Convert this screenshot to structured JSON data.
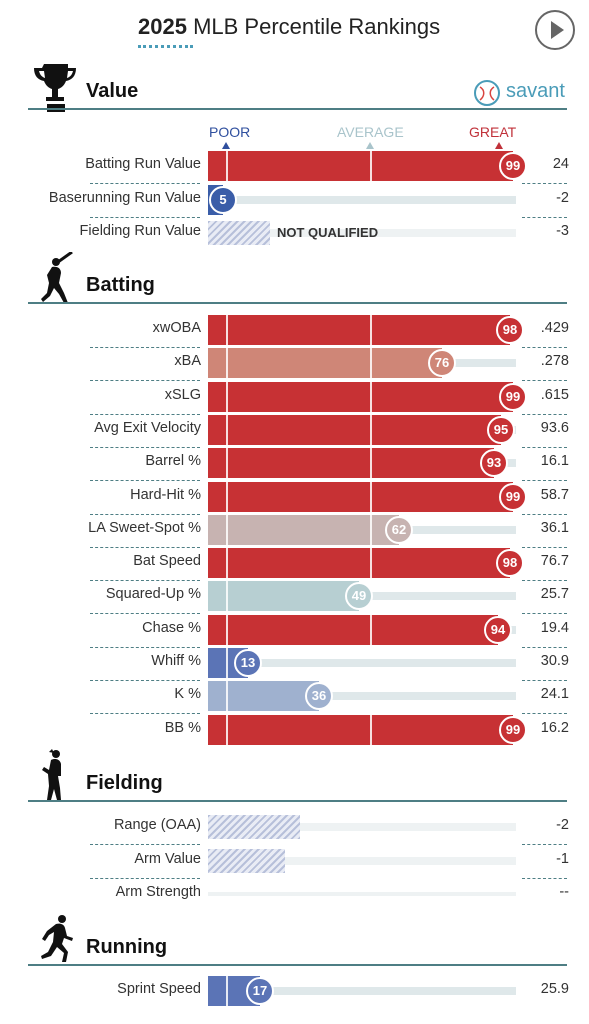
{
  "header": {
    "title_year": "2025",
    "title_rest": " MLB Percentile Rankings",
    "play_label": "play-icon"
  },
  "brand": {
    "savant_label": "savant",
    "accent": "#4a9cb8"
  },
  "scale": {
    "poor": "POOR",
    "average": "AVERAGE",
    "great": "GREAT",
    "poor_color": "#2f4f9e",
    "average_color": "#a9c4cb",
    "great_color": "#c0313a"
  },
  "sections": {
    "value": "Value",
    "batting": "Batting",
    "fielding": "Fielding",
    "running": "Running"
  },
  "rows": {
    "value": [
      {
        "label": "Batting Run Value",
        "percentile": 99,
        "value": "24",
        "color": "#c73134"
      },
      {
        "label": "Baserunning Run Value",
        "percentile": 5,
        "value": "-2",
        "color": "#3a5da8"
      },
      {
        "label": "Fielding Run Value",
        "percentile": null,
        "value": "-3",
        "status": "NOT QUALIFIED"
      }
    ],
    "batting": [
      {
        "label": "xwOBA",
        "percentile": 98,
        "value": ".429",
        "color": "#c73134"
      },
      {
        "label": "xBA",
        "percentile": 76,
        "value": ".278",
        "color": "#cf8677"
      },
      {
        "label": "xSLG",
        "percentile": 99,
        "value": ".615",
        "color": "#c73134"
      },
      {
        "label": "Avg Exit Velocity",
        "percentile": 95,
        "value": "93.6",
        "color": "#c73134"
      },
      {
        "label": "Barrel %",
        "percentile": 93,
        "value": "16.1",
        "color": "#c73134"
      },
      {
        "label": "Hard-Hit %",
        "percentile": 99,
        "value": "58.7",
        "color": "#c73134"
      },
      {
        "label": "LA Sweet-Spot %",
        "percentile": 62,
        "value": "36.1",
        "color": "#c7b3b1"
      },
      {
        "label": "Bat Speed",
        "percentile": 98,
        "value": "76.7",
        "color": "#c73134"
      },
      {
        "label": "Squared-Up %",
        "percentile": 49,
        "value": "25.7",
        "color": "#b7cfd2"
      },
      {
        "label": "Chase %",
        "percentile": 94,
        "value": "19.4",
        "color": "#c73134"
      },
      {
        "label": "Whiff %",
        "percentile": 13,
        "value": "30.9",
        "color": "#5b74b6"
      },
      {
        "label": "K %",
        "percentile": 36,
        "value": "24.1",
        "color": "#9fb1cf"
      },
      {
        "label": "BB %",
        "percentile": 99,
        "value": "16.2",
        "color": "#c73134"
      }
    ],
    "fielding": [
      {
        "label": "Range (OAA)",
        "percentile": 30,
        "value": "-2",
        "hatched": true
      },
      {
        "label": "Arm Value",
        "percentile": 25,
        "value": "-1",
        "hatched": true
      },
      {
        "label": "Arm Strength",
        "percentile": null,
        "value": "--"
      }
    ],
    "running": [
      {
        "label": "Sprint Speed",
        "percentile": 17,
        "value": "25.9",
        "color": "#5b74b6"
      }
    ]
  }
}
